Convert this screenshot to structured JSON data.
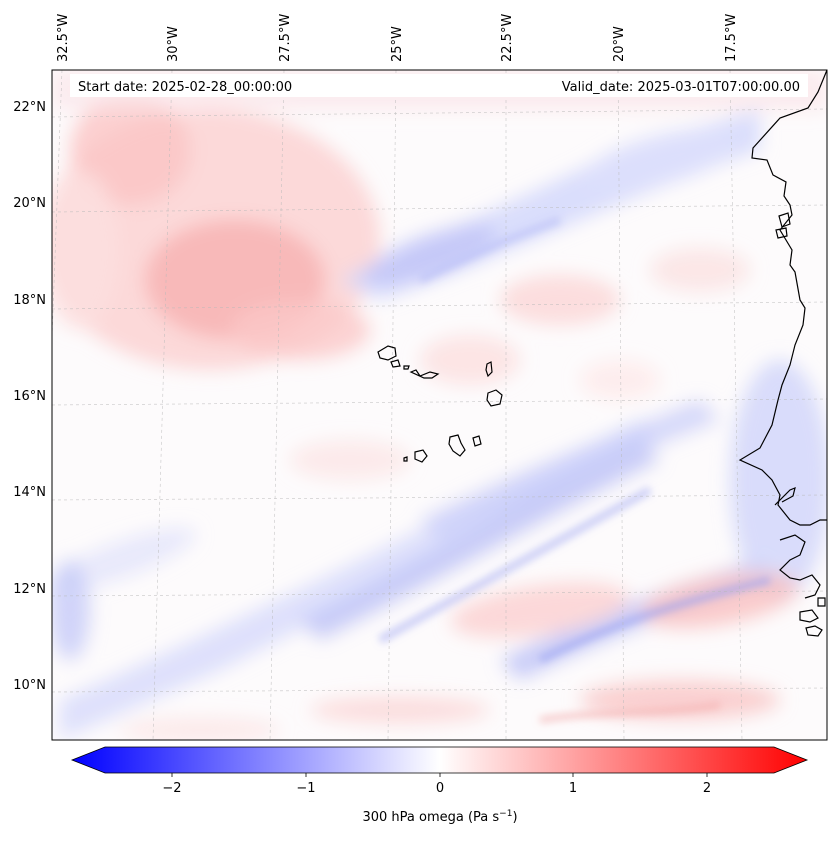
{
  "map": {
    "start_date": "Start date: 2025-02-28_00:00:00",
    "valid_date": "Valid_date: 2025-03-01T07:00:00.00",
    "lon_labels": [
      "32.5°W",
      "30°W",
      "27.5°W",
      "25°W",
      "22.5°W",
      "20°W",
      "17.5°W"
    ],
    "lat_labels": [
      "22°N",
      "20°N",
      "18°N",
      "16°N",
      "14°N",
      "12°N",
      "10°N"
    ]
  },
  "colorbar": {
    "ticks": [
      "−2",
      "−1",
      "0",
      "1",
      "2"
    ],
    "label_main": "300 hPa omega (Pa s",
    "label_exp": "−1",
    "label_end": ")"
  },
  "colors": {
    "negative": "#0000ff",
    "neutral": "#ffffff",
    "positive": "#ff0000",
    "coastline": "#000000"
  }
}
